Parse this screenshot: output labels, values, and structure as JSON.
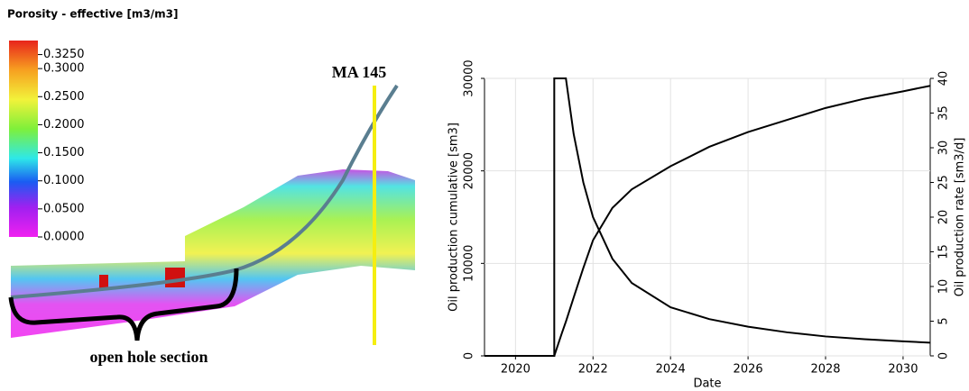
{
  "chart_data": [
    {
      "type": "colorbar",
      "title": "Porosity - effective [m3/m3]",
      "ylim": [
        0,
        0.35
      ],
      "yticks": [
        {
          "value": 0.325,
          "label": "0.3250"
        },
        {
          "value": 0.3,
          "label": "0.3000"
        },
        {
          "value": 0.25,
          "label": "0.2500"
        },
        {
          "value": 0.2,
          "label": "0.2000"
        },
        {
          "value": 0.15,
          "label": "0.1500"
        },
        {
          "value": 0.1,
          "label": "0.1000"
        },
        {
          "value": 0.05,
          "label": "0.0500"
        },
        {
          "value": 0,
          "label": "0.0000"
        }
      ],
      "annotations": [
        "MA 145",
        "open hole section"
      ]
    },
    {
      "type": "line",
      "xlabel": "Date",
      "ylabel": "Oil production cumulative [sm3]",
      "y2label": "Oil production rate [sm3/d]",
      "x": [
        2019.2,
        2021,
        2021,
        2021.2,
        2021.3,
        2021.5,
        2021.75,
        2022,
        2022.5,
        2023,
        2024,
        2025,
        2026,
        2027,
        2028,
        2029,
        2030,
        2030.7
      ],
      "series": [
        {
          "name": "Oil production cumulative",
          "color": "#000000",
          "values": [
            0,
            0,
            0,
            2500,
            3700,
            6300,
            9500,
            12500,
            16000,
            18000,
            20500,
            22600,
            24200,
            25500,
            26800,
            27800,
            28600,
            29200
          ]
        },
        {
          "name": "Oil production rate",
          "color": "#000000",
          "axis": "y2",
          "values": [
            0,
            0,
            40,
            40,
            40,
            32,
            25,
            20,
            14,
            10.5,
            7,
            5.3,
            4.2,
            3.4,
            2.8,
            2.4,
            2.1,
            1.9
          ]
        }
      ],
      "xlim": [
        2019.2,
        2030.7
      ],
      "xticks": [
        2020,
        2022,
        2024,
        2026,
        2028,
        2030
      ],
      "ylim": [
        0,
        30000
      ],
      "yticks": [
        0,
        10000,
        20000,
        30000
      ],
      "y2lim": [
        0,
        40
      ],
      "y2ticks": [
        0,
        5,
        10,
        15,
        20,
        25,
        30,
        35,
        40
      ],
      "grid": true
    }
  ]
}
